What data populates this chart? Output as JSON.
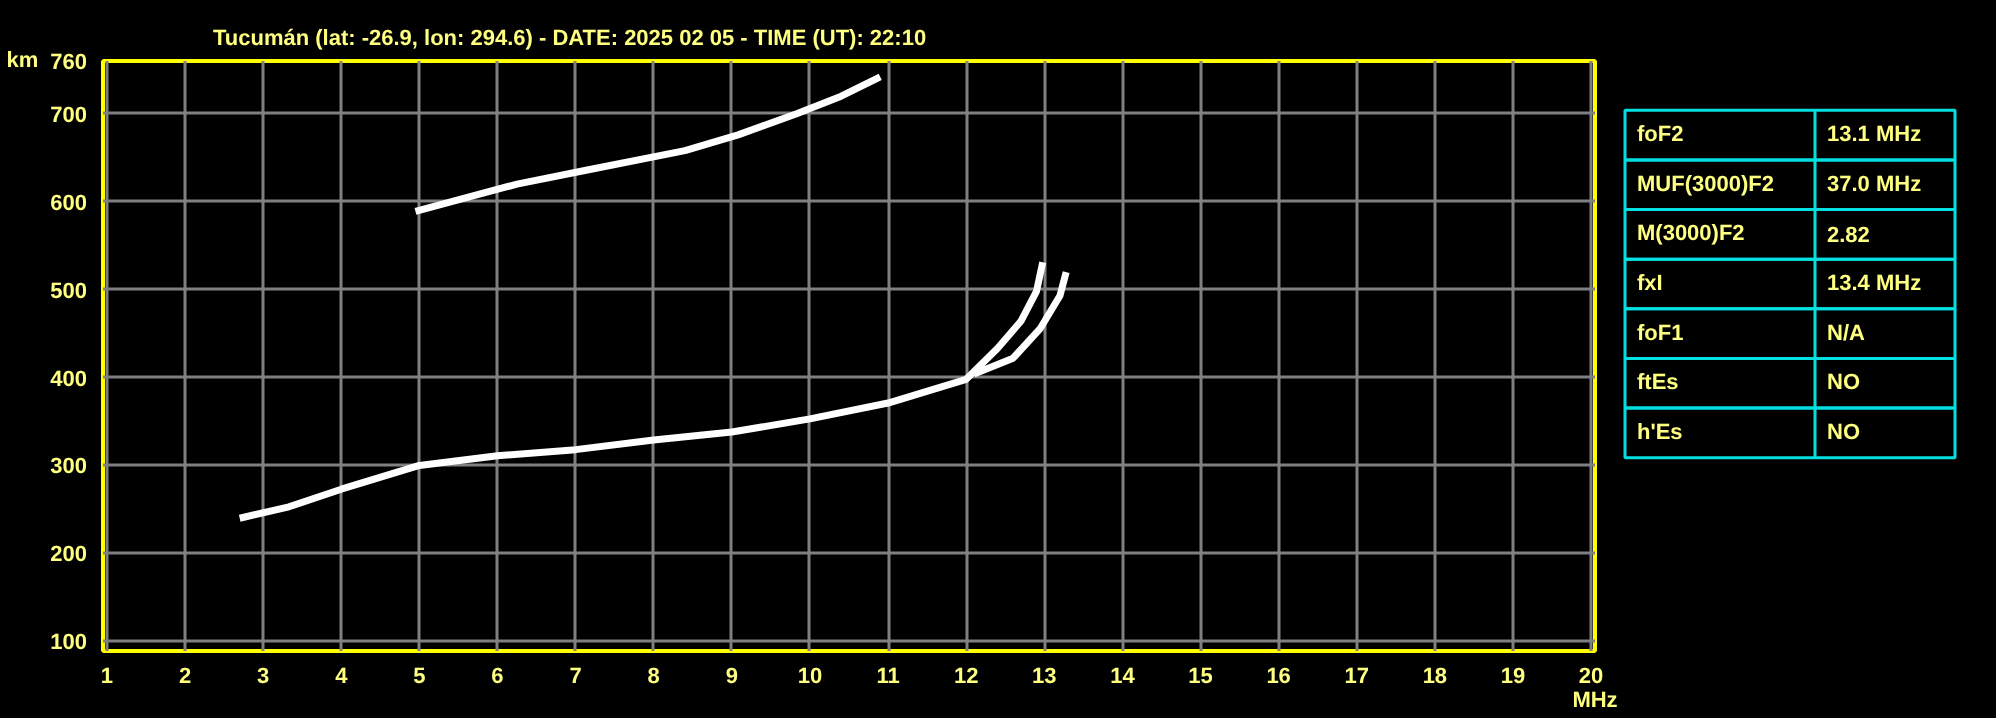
{
  "chart_data": [
    {
      "type": "line",
      "title": "Tucumán (lat: -26.9, lon: 294.6) - DATE: 2025 02 05 - TIME (UT): 22:10",
      "xlabel": "MHz",
      "ylabel": "km",
      "xlim": [
        0.95,
        20.05
      ],
      "ylim": [
        89,
        760
      ],
      "xticks": [
        1,
        2,
        3,
        4,
        5,
        6,
        7,
        8,
        9,
        10,
        11,
        12,
        13,
        14,
        15,
        16,
        17,
        18,
        19,
        20
      ],
      "yticks": [
        100,
        200,
        300,
        400,
        500,
        600,
        700,
        760
      ],
      "grid": true,
      "marker": "none",
      "line_style": "solid",
      "series": [
        {
          "color": "#ffffff",
          "x": [
            2.7,
            3.33,
            4,
            5,
            6,
            7,
            8,
            9,
            10,
            11,
            12,
            12.4,
            12.7,
            12.9,
            12.98
          ],
          "values": [
            240,
            253,
            273,
            300,
            311,
            318,
            329,
            338,
            353,
            371,
            398,
            433,
            464,
            498,
            531
          ]
        },
        {
          "color": "#ffffff",
          "x": [
            12.1,
            12.6,
            12.95,
            13.2,
            13.28
          ],
          "values": [
            404,
            422,
            456,
            493,
            520
          ]
        },
        {
          "color": "#ffffff",
          "x": [
            4.95,
            6.25,
            7.15,
            8.4,
            9.08,
            9.83,
            10.4,
            10.9
          ],
          "values": [
            589,
            620,
            636,
            658,
            676,
            700,
            720,
            742
          ]
        }
      ]
    },
    {
      "type": "other",
      "annotations": [
        "foF2",
        "13.1 MHz",
        "MUF(3000)F2",
        "37.0 MHz",
        "M(3000)F2",
        "2.82",
        "fxI",
        "13.4 MHz",
        "foF1",
        "N/A",
        "ftEs",
        "NO",
        "h'Es",
        "NO"
      ]
    }
  ]
}
